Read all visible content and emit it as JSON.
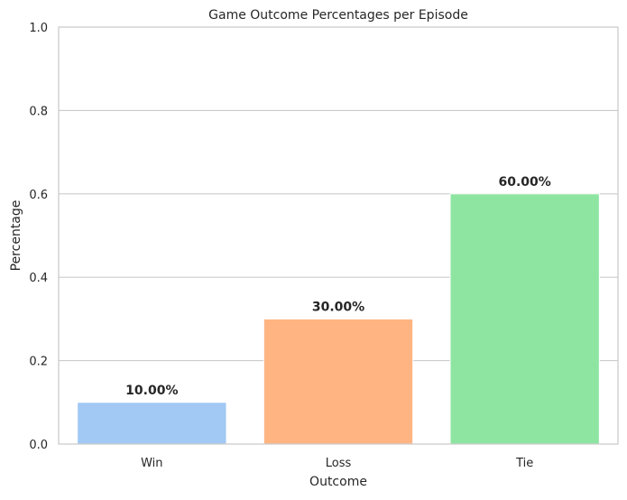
{
  "chart_data": {
    "type": "bar",
    "title": "Game Outcome Percentages per Episode",
    "xlabel": "Outcome",
    "ylabel": "Percentage",
    "categories": [
      "Win",
      "Loss",
      "Tie"
    ],
    "values": [
      0.1,
      0.3,
      0.6
    ],
    "data_labels": [
      "10.00%",
      "30.00%",
      "60.00%"
    ],
    "colors": [
      "#a1c9f4",
      "#ffb482",
      "#8de5a1"
    ],
    "ylim": [
      0,
      1.0
    ],
    "yticks": [
      0.0,
      0.2,
      0.4,
      0.6,
      0.8,
      1.0
    ],
    "ytick_labels": [
      "0.0",
      "0.2",
      "0.4",
      "0.6",
      "0.8",
      "1.0"
    ],
    "grid": "horizontal"
  }
}
